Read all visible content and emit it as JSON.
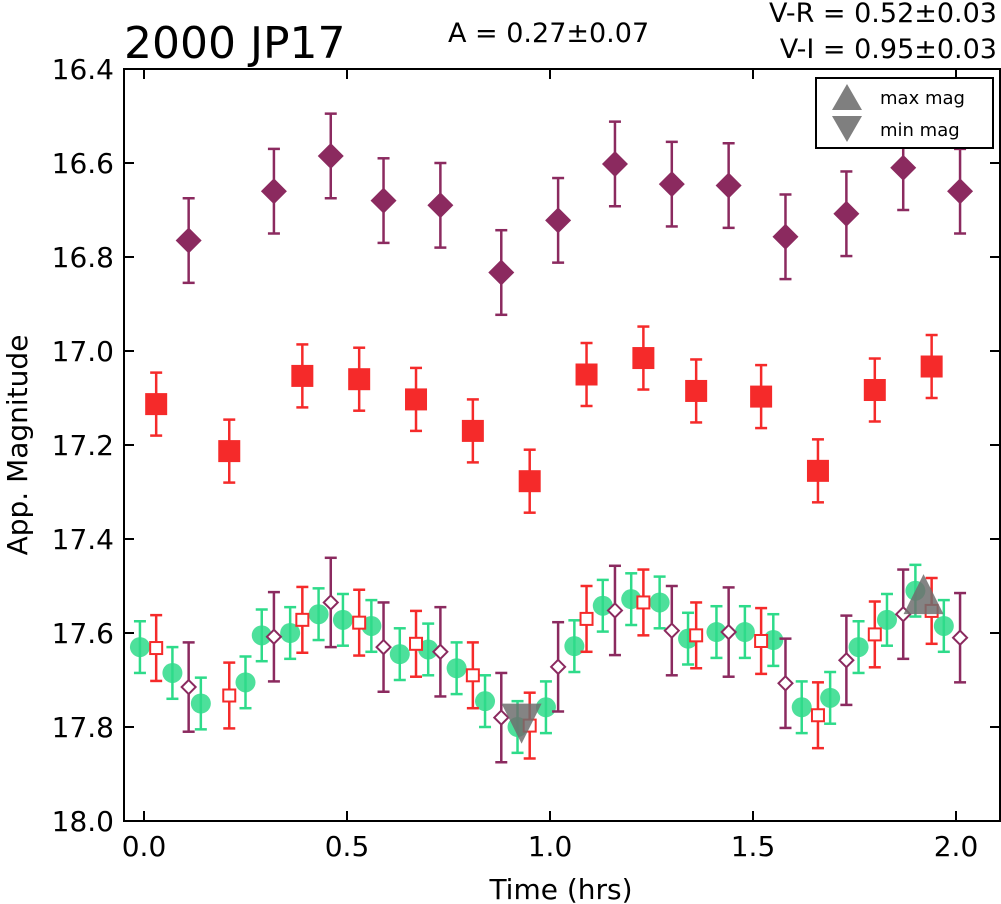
{
  "chart_data": {
    "type": "scatter",
    "title": "2000 JP17",
    "annotations": {
      "amplitude": "A  = 0.27±0.07",
      "vr": "V-R = 0.52±0.03",
      "vi": "V-I  = 0.95±0.03"
    },
    "xlabel": "Time (hrs)",
    "ylabel": "App. Magnitude",
    "xlim": [
      -0.06,
      2.1
    ],
    "ylim": [
      18.0,
      16.4
    ],
    "y_inverted": true,
    "x_ticks": [
      "0.0",
      "0.5",
      "1.0",
      "1.5",
      "2.0"
    ],
    "y_ticks": [
      "16.4",
      "16.6",
      "16.8",
      "17.0",
      "17.2",
      "17.4",
      "17.6",
      "17.8",
      "18.0"
    ],
    "legend": {
      "placement": "top-right",
      "entries": [
        "max mag",
        "min mag"
      ]
    },
    "series": [
      {
        "marker": "diamond-filled",
        "color": "#8B2A5F",
        "points": [
          {
            "x": 0.11,
            "y": 16.765,
            "err": 0.09
          },
          {
            "x": 0.32,
            "y": 16.66,
            "err": 0.09
          },
          {
            "x": 0.46,
            "y": 16.585,
            "err": 0.09
          },
          {
            "x": 0.59,
            "y": 16.68,
            "err": 0.09
          },
          {
            "x": 0.73,
            "y": 16.69,
            "err": 0.09
          },
          {
            "x": 0.88,
            "y": 16.833,
            "err": 0.09
          },
          {
            "x": 1.02,
            "y": 16.722,
            "err": 0.09
          },
          {
            "x": 1.16,
            "y": 16.602,
            "err": 0.09
          },
          {
            "x": 1.3,
            "y": 16.645,
            "err": 0.09
          },
          {
            "x": 1.44,
            "y": 16.648,
            "err": 0.09
          },
          {
            "x": 1.58,
            "y": 16.757,
            "err": 0.09
          },
          {
            "x": 1.73,
            "y": 16.708,
            "err": 0.09
          },
          {
            "x": 1.87,
            "y": 16.61,
            "err": 0.09
          },
          {
            "x": 2.01,
            "y": 16.66,
            "err": 0.09
          }
        ]
      },
      {
        "marker": "square-filled",
        "color": "#F52A2A",
        "points": [
          {
            "x": 0.03,
            "y": 17.113,
            "err": 0.067
          },
          {
            "x": 0.21,
            "y": 17.213,
            "err": 0.067
          },
          {
            "x": 0.39,
            "y": 17.053,
            "err": 0.067
          },
          {
            "x": 0.53,
            "y": 17.06,
            "err": 0.067
          },
          {
            "x": 0.67,
            "y": 17.103,
            "err": 0.067
          },
          {
            "x": 0.81,
            "y": 17.17,
            "err": 0.067
          },
          {
            "x": 0.95,
            "y": 17.277,
            "err": 0.067
          },
          {
            "x": 1.09,
            "y": 17.05,
            "err": 0.067
          },
          {
            "x": 1.23,
            "y": 17.015,
            "err": 0.067
          },
          {
            "x": 1.36,
            "y": 17.085,
            "err": 0.067
          },
          {
            "x": 1.52,
            "y": 17.097,
            "err": 0.067
          },
          {
            "x": 1.66,
            "y": 17.255,
            "err": 0.067
          },
          {
            "x": 1.8,
            "y": 17.083,
            "err": 0.067
          },
          {
            "x": 1.94,
            "y": 17.033,
            "err": 0.067
          }
        ]
      },
      {
        "marker": "circle-filled",
        "color": "#2EDB8A",
        "points": [
          {
            "x": -0.01,
            "y": 17.63,
            "err": 0.055
          },
          {
            "x": 0.07,
            "y": 17.685,
            "err": 0.055
          },
          {
            "x": 0.14,
            "y": 17.75,
            "err": 0.055
          },
          {
            "x": 0.25,
            "y": 17.705,
            "err": 0.055
          },
          {
            "x": 0.29,
            "y": 17.605,
            "err": 0.055
          },
          {
            "x": 0.36,
            "y": 17.6,
            "err": 0.055
          },
          {
            "x": 0.43,
            "y": 17.56,
            "err": 0.055
          },
          {
            "x": 0.49,
            "y": 17.572,
            "err": 0.055
          },
          {
            "x": 0.56,
            "y": 17.585,
            "err": 0.055
          },
          {
            "x": 0.63,
            "y": 17.645,
            "err": 0.055
          },
          {
            "x": 0.7,
            "y": 17.635,
            "err": 0.055
          },
          {
            "x": 0.77,
            "y": 17.675,
            "err": 0.055
          },
          {
            "x": 0.84,
            "y": 17.745,
            "err": 0.055
          },
          {
            "x": 0.92,
            "y": 17.8,
            "err": 0.055
          },
          {
            "x": 0.99,
            "y": 17.758,
            "err": 0.055
          },
          {
            "x": 1.06,
            "y": 17.628,
            "err": 0.055
          },
          {
            "x": 1.13,
            "y": 17.542,
            "err": 0.055
          },
          {
            "x": 1.2,
            "y": 17.528,
            "err": 0.055
          },
          {
            "x": 1.27,
            "y": 17.535,
            "err": 0.055
          },
          {
            "x": 1.34,
            "y": 17.612,
            "err": 0.055
          },
          {
            "x": 1.41,
            "y": 17.598,
            "err": 0.055
          },
          {
            "x": 1.48,
            "y": 17.598,
            "err": 0.055
          },
          {
            "x": 1.55,
            "y": 17.615,
            "err": 0.055
          },
          {
            "x": 1.62,
            "y": 17.758,
            "err": 0.055
          },
          {
            "x": 1.69,
            "y": 17.738,
            "err": 0.055
          },
          {
            "x": 1.76,
            "y": 17.63,
            "err": 0.055
          },
          {
            "x": 1.83,
            "y": 17.572,
            "err": 0.055
          },
          {
            "x": 1.9,
            "y": 17.51,
            "err": 0.055
          },
          {
            "x": 1.97,
            "y": 17.585,
            "err": 0.055
          }
        ]
      },
      {
        "marker": "square-open",
        "color": "#F52A2A",
        "points": [
          {
            "x": 0.03,
            "y": 17.632,
            "err": 0.07
          },
          {
            "x": 0.21,
            "y": 17.733,
            "err": 0.07
          },
          {
            "x": 0.39,
            "y": 17.572,
            "err": 0.07
          },
          {
            "x": 0.53,
            "y": 17.578,
            "err": 0.07
          },
          {
            "x": 0.67,
            "y": 17.623,
            "err": 0.07
          },
          {
            "x": 0.81,
            "y": 17.69,
            "err": 0.07
          },
          {
            "x": 0.95,
            "y": 17.797,
            "err": 0.07
          },
          {
            "x": 1.09,
            "y": 17.57,
            "err": 0.07
          },
          {
            "x": 1.23,
            "y": 17.535,
            "err": 0.07
          },
          {
            "x": 1.36,
            "y": 17.605,
            "err": 0.07
          },
          {
            "x": 1.52,
            "y": 17.617,
            "err": 0.07
          },
          {
            "x": 1.66,
            "y": 17.775,
            "err": 0.07
          },
          {
            "x": 1.8,
            "y": 17.603,
            "err": 0.07
          },
          {
            "x": 1.94,
            "y": 17.553,
            "err": 0.07
          }
        ]
      },
      {
        "marker": "diamond-open",
        "color": "#8B2A5F",
        "points": [
          {
            "x": 0.11,
            "y": 17.715,
            "err": 0.095
          },
          {
            "x": 0.32,
            "y": 17.608,
            "err": 0.095
          },
          {
            "x": 0.46,
            "y": 17.535,
            "err": 0.095
          },
          {
            "x": 0.59,
            "y": 17.63,
            "err": 0.095
          },
          {
            "x": 0.73,
            "y": 17.64,
            "err": 0.095
          },
          {
            "x": 0.88,
            "y": 17.78,
            "err": 0.095
          },
          {
            "x": 1.02,
            "y": 17.672,
            "err": 0.095
          },
          {
            "x": 1.16,
            "y": 17.552,
            "err": 0.095
          },
          {
            "x": 1.3,
            "y": 17.595,
            "err": 0.095
          },
          {
            "x": 1.44,
            "y": 17.598,
            "err": 0.095
          },
          {
            "x": 1.58,
            "y": 17.707,
            "err": 0.095
          },
          {
            "x": 1.73,
            "y": 17.658,
            "err": 0.095
          },
          {
            "x": 1.87,
            "y": 17.56,
            "err": 0.095
          },
          {
            "x": 2.01,
            "y": 17.61,
            "err": 0.095
          }
        ]
      }
    ],
    "extrema_markers": [
      {
        "kind": "max",
        "x": 1.92,
        "y": 17.53,
        "color": "#6E6E6E"
      },
      {
        "kind": "min",
        "x": 0.93,
        "y": 17.78,
        "color": "#6E6E6E"
      }
    ]
  }
}
